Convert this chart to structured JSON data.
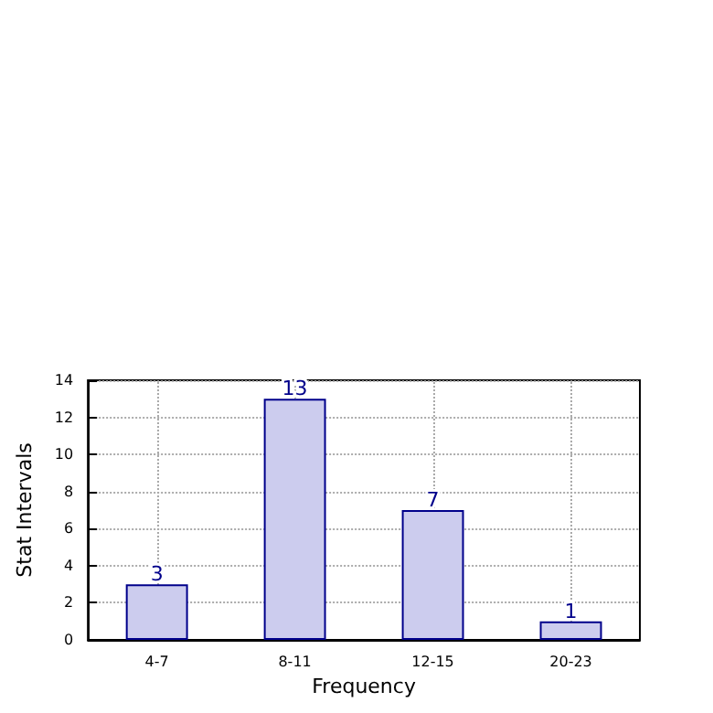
{
  "chart_data": {
    "type": "bar",
    "xlabel": "Frequency",
    "ylabel": "Stat Intervals",
    "categories": [
      "4-7",
      "8-11",
      "12-15",
      "20-23"
    ],
    "values": [
      3,
      13,
      7,
      1
    ],
    "color": "#ccccee",
    "ylim": [
      0,
      14
    ],
    "yticks": [
      0,
      2,
      4,
      6,
      8,
      10,
      12,
      14
    ],
    "grid": true,
    "data_labels": true
  }
}
